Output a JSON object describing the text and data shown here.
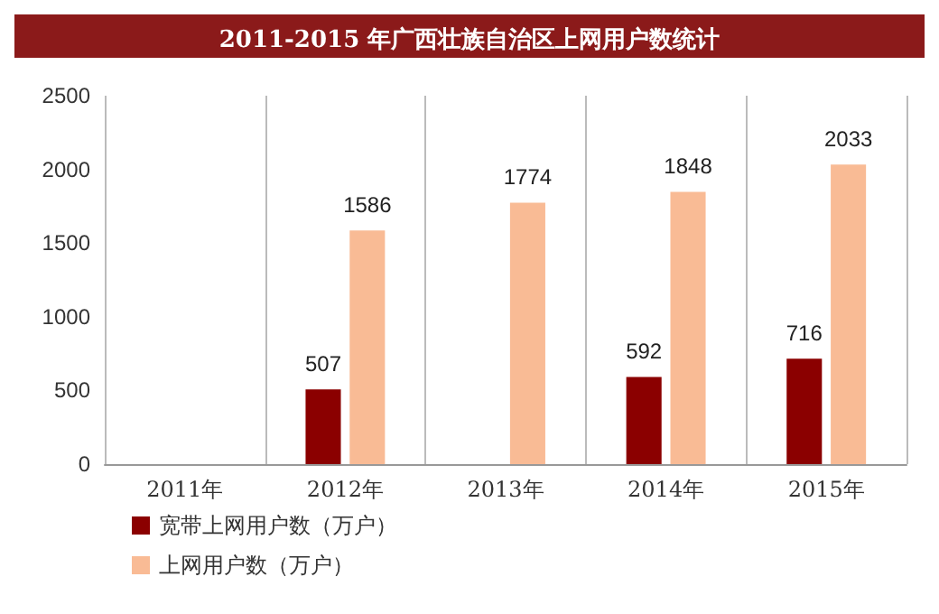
{
  "chart_data": {
    "type": "bar",
    "title": "2011-2015 年广西壮族自治区上网用户数统计",
    "categories": [
      "2011年",
      "2012年",
      "2013年",
      "2014年",
      "2015年"
    ],
    "series": [
      {
        "name": "宽带上网用户数（万户）",
        "color": "#8b0000",
        "values": [
          null,
          507,
          null,
          592,
          716
        ]
      },
      {
        "name": "上网用户数（万户）",
        "color": "#f9bb95",
        "values": [
          null,
          1586,
          1774,
          1848,
          2033
        ]
      }
    ],
    "ylim": [
      0,
      2500
    ],
    "yticks": [
      0,
      500,
      1000,
      1500,
      2000,
      2500
    ],
    "grid": "x",
    "legend": "bottom",
    "data_labels": true
  }
}
